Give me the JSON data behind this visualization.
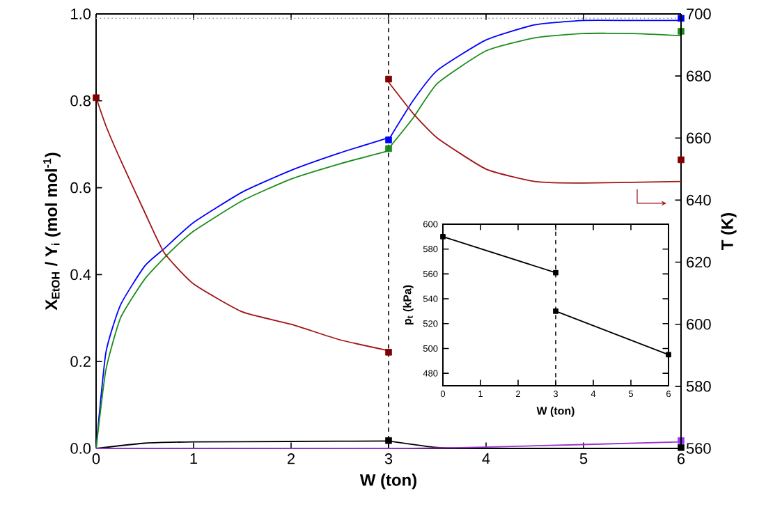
{
  "chart_data": [
    {
      "type": "line",
      "xlabel": "W (ton)",
      "ylabel": "X$_{EtOH}$ / Y$_{i}$ (mol mol$^{-1}$)",
      "y2label": "T (K)",
      "xlim": [
        0,
        6
      ],
      "xticks": [
        0,
        1,
        2,
        3,
        4,
        5,
        6
      ],
      "ylim": [
        0,
        1
      ],
      "yticks": [
        {
          "value": 0,
          "label": "0.0"
        },
        {
          "value": 0.2,
          "label": "0.2"
        },
        {
          "value": 0.4,
          "label": "0.4"
        },
        {
          "value": 0.6,
          "label": "0.6"
        },
        {
          "value": 0.8,
          "label": "0.8"
        },
        {
          "value": 1,
          "label": "1.0"
        }
      ],
      "y2lim": [
        560,
        700
      ],
      "y2ticks": [
        560,
        580,
        600,
        620,
        640,
        660,
        680,
        700
      ],
      "marker": "none",
      "line_style": "solid",
      "ref_lines": [
        {
          "axis": "x",
          "value": 3,
          "color": "#000000",
          "line_style": "dashed"
        },
        {
          "axis": "y",
          "value": 0.99,
          "color": "#999999",
          "line_style": "dotted"
        }
      ],
      "series": [
        {
          "color": "#0000ff",
          "x": [
            0,
            0.1,
            0.25,
            0.5,
            0.7,
            1,
            1.5,
            2,
            2.5,
            3
          ],
          "values": [
            0,
            0.22,
            0.33,
            0.42,
            0.46,
            0.52,
            0.59,
            0.64,
            0.68,
            0.715
          ]
        },
        {
          "color": "#0000ff",
          "x": [
            3,
            3.25,
            3.5,
            4,
            4.5,
            5,
            5.5,
            6
          ],
          "values": [
            0.71,
            0.8,
            0.87,
            0.94,
            0.975,
            0.985,
            0.985,
            0.985
          ]
        },
        {
          "color": "#1a8c1a",
          "x": [
            0,
            0.1,
            0.25,
            0.5,
            0.75,
            1,
            1.5,
            2,
            2.5,
            3
          ],
          "values": [
            0,
            0.18,
            0.3,
            0.39,
            0.45,
            0.5,
            0.57,
            0.62,
            0.655,
            0.685
          ]
        },
        {
          "color": "#1a8c1a",
          "x": [
            3,
            3.25,
            3.5,
            4,
            4.5,
            5,
            5.5,
            6
          ],
          "values": [
            0.69,
            0.76,
            0.84,
            0.915,
            0.945,
            0.955,
            0.955,
            0.95
          ]
        },
        {
          "color": "#000000",
          "x": [
            0,
            0.5,
            1,
            2,
            3
          ],
          "values": [
            0,
            0.012,
            0.015,
            0.016,
            0.017
          ]
        },
        {
          "color": "#000000",
          "x": [
            3,
            3.5,
            4,
            6
          ],
          "values": [
            0.017,
            0.002,
            0,
            0
          ]
        },
        {
          "color": "#9933cc",
          "x": [
            0,
            3,
            4,
            6
          ],
          "values": [
            0,
            0,
            0.003,
            0.015
          ]
        },
        {
          "color": "#a01515",
          "axis": "y2",
          "x": [
            0,
            0.1,
            0.25,
            0.5,
            0.7,
            1,
            1.5,
            2,
            2.5,
            3
          ],
          "values": [
            673,
            664,
            653,
            636,
            623,
            613,
            604,
            600,
            595,
            591.5
          ]
        },
        {
          "color": "#a01515",
          "axis": "y2",
          "x": [
            3,
            3.25,
            3.5,
            4,
            4.5,
            5,
            6
          ],
          "values": [
            678,
            668,
            660,
            650,
            646,
            645.5,
            646
          ]
        },
        {
          "type": "scatter",
          "marker": "square",
          "color": "#0000ff",
          "x": [
            3,
            6
          ],
          "values": [
            0.71,
            0.99
          ]
        },
        {
          "type": "scatter",
          "marker": "square",
          "color": "#1a8c1a",
          "x": [
            3,
            6
          ],
          "values": [
            0.69,
            0.96
          ]
        },
        {
          "type": "scatter",
          "marker": "square",
          "color": "#000000",
          "x": [
            3,
            6
          ],
          "values": [
            0.018,
            0.002
          ]
        },
        {
          "type": "scatter",
          "marker": "square",
          "color": "#9933ff",
          "x": [
            6
          ],
          "values": [
            0.018
          ]
        },
        {
          "type": "scatter",
          "marker": "square",
          "color": "#800000",
          "axis": "y2",
          "x": [
            0,
            3,
            3,
            6
          ],
          "values": [
            673,
            591,
            679,
            653
          ]
        }
      ]
    },
    {
      "type": "line",
      "xlabel": "W (ton)",
      "ylabel": "p$_{t}$ (kPa)",
      "xlim": [
        0,
        6
      ],
      "xticks": [
        0,
        1,
        2,
        3,
        4,
        5,
        6
      ],
      "ylim": [
        470,
        600
      ],
      "yticks": [
        480,
        500,
        520,
        540,
        560,
        580,
        600
      ],
      "marker": "square",
      "ref_lines": [
        {
          "axis": "x",
          "value": 3,
          "color": "#000000",
          "line_style": "dashed"
        }
      ],
      "series": [
        {
          "color": "#000000",
          "x": [
            0,
            3
          ],
          "values": [
            590,
            561
          ]
        },
        {
          "color": "#000000",
          "x": [
            3,
            6
          ],
          "values": [
            530,
            495
          ]
        }
      ]
    }
  ]
}
